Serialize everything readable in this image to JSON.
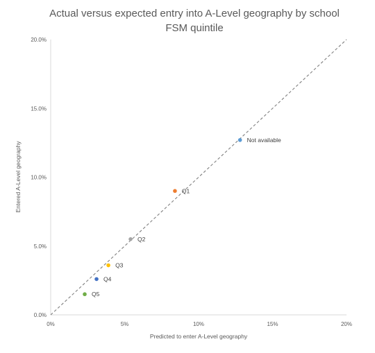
{
  "chart_data": {
    "type": "scatter",
    "title_line1": "Actual versus expected entry into A-Level geography by school",
    "title_line2": "FSM quintile",
    "xlabel": "Predicted to enter A-Level geography",
    "ylabel": "Entered A-Level geography",
    "xlim": [
      0,
      20
    ],
    "ylim": [
      0,
      20
    ],
    "x_ticks": [
      0,
      5,
      10,
      15,
      20
    ],
    "x_tick_labels": [
      "0%",
      "5%",
      "10%",
      "15%",
      "20%"
    ],
    "y_ticks": [
      0,
      5,
      10,
      15,
      20
    ],
    "y_tick_labels": [
      "0.0%",
      "5.0%",
      "10.0%",
      "15.0%",
      "20.0%"
    ],
    "grid": false,
    "reference_line": {
      "style": "dashed",
      "from": [
        0,
        0
      ],
      "to": [
        20,
        20
      ],
      "color": "#808080"
    },
    "points": [
      {
        "label": "Not available",
        "x": 12.8,
        "y": 12.7,
        "color": "#5b9bd5"
      },
      {
        "label": "Q1",
        "x": 8.4,
        "y": 9.0,
        "color": "#ed7d31"
      },
      {
        "label": "Q2",
        "x": 5.4,
        "y": 5.5,
        "color": "#a5a5a5"
      },
      {
        "label": "Q3",
        "x": 3.9,
        "y": 3.6,
        "color": "#ffc000"
      },
      {
        "label": "Q4",
        "x": 3.1,
        "y": 2.6,
        "color": "#4472c4"
      },
      {
        "label": "Q5",
        "x": 2.3,
        "y": 1.5,
        "color": "#70ad47"
      }
    ]
  }
}
